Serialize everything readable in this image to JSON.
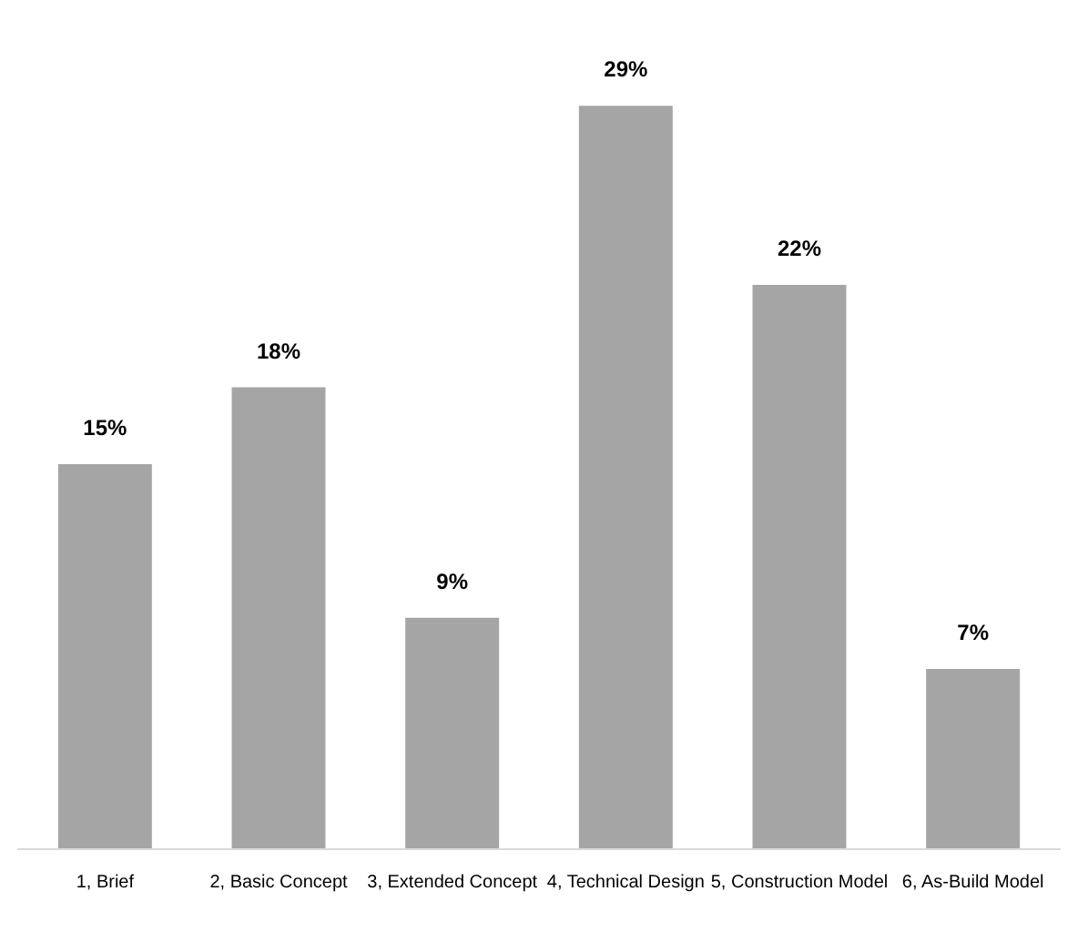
{
  "chart_data": {
    "type": "bar",
    "categories": [
      "1, Brief",
      "2, Basic Concept",
      "3, Extended Concept",
      "4, Technical Design",
      "5, Construction Model",
      "6, As-Build Model"
    ],
    "values": [
      15,
      18,
      9,
      29,
      22,
      7
    ],
    "value_labels": [
      "15%",
      "18%",
      "9%",
      "29%",
      "22%",
      "7%"
    ],
    "color": "#a5a5a5"
  }
}
